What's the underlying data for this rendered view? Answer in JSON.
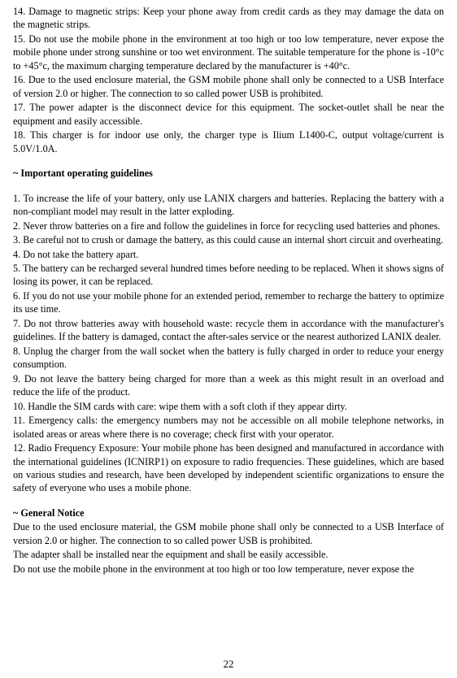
{
  "safety": {
    "item14": "14. Damage to magnetic strips: Keep your phone away from credit cards as they may damage the data on the magnetic strips.",
    "item15": "15. Do not use the mobile phone in the environment at too high or too low temperature, never expose the mobile phone under strong sunshine or too wet environment. The suitable temperature for the phone is -10°c to +45°c, the maximum charging temperature declared by the manufacturer is +40°c.",
    "item16": "16. Due to the used enclosure material, the GSM mobile phone shall only be connected to a USB Interface of version 2.0 or higher. The connection to so called power USB is prohibited.",
    "item17": "17. The power adapter is the disconnect device for this equipment. The socket-outlet shall be near the equipment and easily accessible.",
    "item18": "18. This charger is for indoor use only, the charger type is Ilium L1400-C, output voltage/current is 5.0V/1.0A."
  },
  "guidelines": {
    "title": "~ Important operating guidelines",
    "item1": "1. To increase the life of your battery, only use LANIX chargers and batteries. Replacing the battery with a non-compliant model may result in the latter exploding.",
    "item2": "2. Never throw batteries on a fire and follow the guidelines in force for recycling used batteries and phones.",
    "item3": "3. Be careful not to crush or damage the battery, as this could cause an internal short circuit and overheating.",
    "item4": "4. Do not take the battery apart.",
    "item5": "5. The battery can be recharged several hundred times before needing to be replaced. When it shows signs of losing its power, it can be replaced.",
    "item6": "6. If you do not use your mobile phone for an extended period, remember to recharge the battery to optimize its use time.",
    "item7": "7. Do not throw batteries away with household waste: recycle them in accordance with the manufacturer's guidelines. If the battery is damaged, contact the after-sales service or the nearest authorized LANIX dealer.",
    "item8": "8. Unplug the charger from the wall socket when the battery is fully charged in order to reduce your energy consumption.",
    "item9": "9. Do not leave the battery being charged for more than a week as this might result in an overload and reduce the life of the product.",
    "item10": "10. Handle the SIM cards with care: wipe them with a soft cloth if they appear dirty.",
    "item11": "11. Emergency calls: the emergency numbers may not be accessible on all mobile telephone networks, in isolated areas or areas where there is no coverage; check first with your operator.",
    "item12": "12. Radio Frequency Exposure: Your mobile phone has been designed and manufactured in accordance with the international guidelines (ICNIRP1) on exposure to radio frequencies. These guidelines, which are based on various studies and research, have been developed by independent scientific organizations to ensure the safety of everyone who uses a mobile phone."
  },
  "general": {
    "title": "~ General Notice",
    "p1": "Due to the used enclosure material, the GSM mobile phone shall only be connected to a USB Interface of version 2.0 or higher. The connection to so called power USB is prohibited.",
    "p2": "The adapter shall be installed near the equipment and shall be easily accessible.",
    "p3": "Do not use the mobile phone in the environment at too high or too low temperature, never expose the"
  },
  "page_number": "22"
}
